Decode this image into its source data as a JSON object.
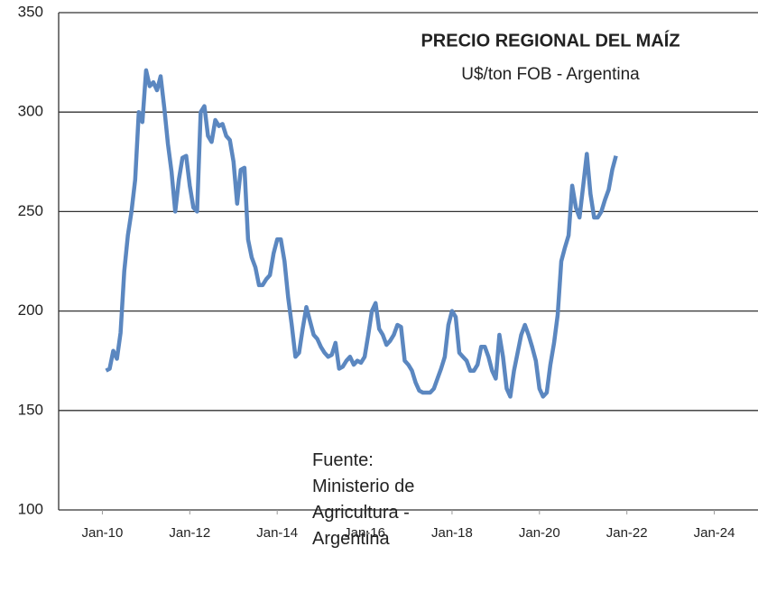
{
  "chart_data": {
    "type": "line",
    "title": "PRECIO REGIONAL DEL MAÍZ",
    "subtitle": "U$/ton FOB - Argentina",
    "annotation": "Fuente: Ministerio de Agricultura - Argentina",
    "x": [
      "2010-02",
      "2010-03",
      "2010-04",
      "2010-05",
      "2010-06",
      "2010-07",
      "2010-08",
      "2010-09",
      "2010-10",
      "2010-11",
      "2010-12",
      "2011-01",
      "2011-02",
      "2011-03",
      "2011-04",
      "2011-05",
      "2011-06",
      "2011-07",
      "2011-08",
      "2011-09",
      "2011-10",
      "2011-11",
      "2011-12",
      "2012-01",
      "2012-02",
      "2012-03",
      "2012-04",
      "2012-05",
      "2012-06",
      "2012-07",
      "2012-08",
      "2012-09",
      "2012-10",
      "2012-11",
      "2012-12",
      "2013-01",
      "2013-02",
      "2013-03",
      "2013-04",
      "2013-05",
      "2013-06",
      "2013-07",
      "2013-08",
      "2013-09",
      "2013-10",
      "2013-11",
      "2013-12",
      "2014-01",
      "2014-02",
      "2014-03",
      "2014-04",
      "2014-05",
      "2014-06",
      "2014-07",
      "2014-08",
      "2014-09",
      "2014-10",
      "2014-11",
      "2014-12",
      "2015-01",
      "2015-02",
      "2015-03",
      "2015-04",
      "2015-05",
      "2015-06",
      "2015-07",
      "2015-08",
      "2015-09",
      "2015-10",
      "2015-11",
      "2015-12",
      "2016-01",
      "2016-02",
      "2016-03",
      "2016-04",
      "2016-05",
      "2016-06",
      "2016-07",
      "2016-08",
      "2016-09",
      "2016-10",
      "2016-11",
      "2016-12",
      "2017-01",
      "2017-02",
      "2017-03",
      "2017-04",
      "2017-05",
      "2017-06",
      "2017-07",
      "2017-08",
      "2017-09",
      "2017-10",
      "2017-11",
      "2017-12",
      "2018-01",
      "2018-02",
      "2018-03",
      "2018-04",
      "2018-05",
      "2018-06",
      "2018-07",
      "2018-08",
      "2018-09",
      "2018-10",
      "2018-11",
      "2018-12",
      "2019-01",
      "2019-02",
      "2019-03",
      "2019-04",
      "2019-05",
      "2019-06",
      "2019-07",
      "2019-08",
      "2019-09",
      "2019-10",
      "2019-11",
      "2019-12",
      "2020-01",
      "2020-02",
      "2020-03",
      "2020-04",
      "2020-05",
      "2020-06",
      "2020-07",
      "2020-08",
      "2020-09",
      "2020-10",
      "2020-11",
      "2020-12",
      "2021-01",
      "2021-02",
      "2021-03",
      "2021-04",
      "2021-05",
      "2021-06",
      "2021-07",
      "2021-08",
      "2021-09",
      "2021-10"
    ],
    "series": [
      {
        "name": "Precio",
        "color": "#5b87c0",
        "values": [
          170,
          171,
          180,
          176,
          189,
          220,
          238,
          250,
          266,
          300,
          295,
          321,
          313,
          315,
          311,
          318,
          302,
          284,
          270,
          250,
          266,
          277,
          278,
          263,
          252,
          250,
          300,
          303,
          288,
          285,
          296,
          293,
          294,
          288,
          286,
          275,
          254,
          271,
          272,
          236,
          227,
          222,
          213,
          213,
          216,
          218,
          229,
          236,
          236,
          225,
          207,
          193,
          177,
          179,
          191,
          202,
          195,
          188,
          186,
          182,
          179,
          177,
          178,
          184,
          171,
          172,
          175,
          177,
          173,
          175,
          174,
          177,
          188,
          200,
          204,
          191,
          188,
          183,
          185,
          188,
          193,
          192,
          175,
          173,
          170,
          164,
          160,
          159,
          159,
          159,
          161,
          166,
          171,
          177,
          193,
          200,
          197,
          179,
          177,
          175,
          170,
          170,
          173,
          182,
          182,
          177,
          170,
          166,
          188,
          177,
          161,
          157,
          170,
          179,
          188,
          193,
          188,
          182,
          175,
          161,
          157,
          159,
          173,
          184,
          198,
          225,
          232,
          238,
          263,
          252,
          247,
          263,
          279,
          259,
          247,
          247,
          250,
          256,
          261,
          271,
          278
        ]
      }
    ],
    "xlim": [
      "2009-01",
      "2025-01"
    ],
    "xticks": [
      {
        "value": "2010-01",
        "label": "Jan-10"
      },
      {
        "value": "2012-01",
        "label": "Jan-12"
      },
      {
        "value": "2014-01",
        "label": "Jan-14"
      },
      {
        "value": "2016-01",
        "label": "Jan-16"
      },
      {
        "value": "2018-01",
        "label": "Jan-18"
      },
      {
        "value": "2020-01",
        "label": "Jan-20"
      },
      {
        "value": "2022-01",
        "label": "Jan-22"
      },
      {
        "value": "2024-01",
        "label": "Jan-24"
      }
    ],
    "ylim": [
      100,
      350
    ],
    "yticks": [
      100,
      150,
      200,
      250,
      300,
      350
    ],
    "grid": true
  }
}
